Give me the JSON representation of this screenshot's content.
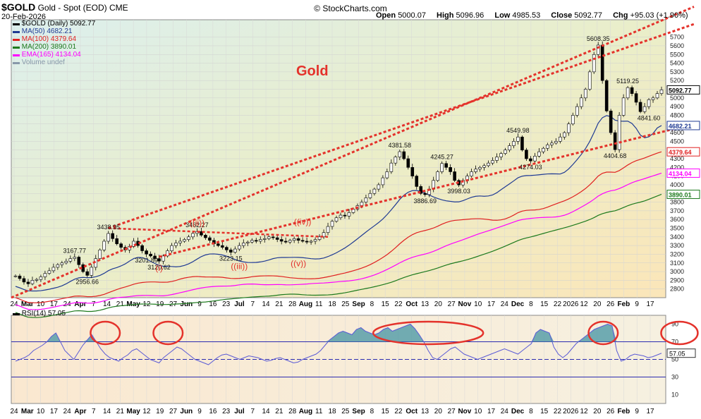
{
  "header": {
    "symbol": "$GOLD",
    "name": "Gold - Spot (EOD)",
    "exchange": "CME",
    "date": "20-Feb-2026",
    "brand": "© StockCharts.com",
    "open_label": "Open",
    "open": "5000.07",
    "high_label": "High",
    "high": "5096.96",
    "low_label": "Low",
    "low": "4985.53",
    "close_label": "Close",
    "close": "5092.77",
    "chg_label": "Chg",
    "chg": "+95.03 (+1.90%)"
  },
  "legend": {
    "price": "$GOLD (Daily) 5092.77",
    "ma50": "MA(50) 4682.21",
    "ma100": "MA(100) 4379.64",
    "ma200": "MA(200) 3890.01",
    "ema165": "EMA(165) 4134.04",
    "volume": "Volume undef",
    "rsi": "RSI(14) 57.05"
  },
  "colors": {
    "price": "#000000",
    "ma50": "#1f3a93",
    "ma100": "#e02020",
    "ma200": "#1d7a1d",
    "ema165": "#ff00ff",
    "annotation": "#e4322b",
    "rsi": "#5b5bd6"
  },
  "chart_data": {
    "type": "candlestick",
    "title": "Gold",
    "ylim": [
      2700,
      5900
    ],
    "yticks": [
      2800,
      2900,
      3000,
      3100,
      3200,
      3300,
      3400,
      3500,
      3600,
      3700,
      3800,
      3900,
      4000,
      4100,
      4200,
      4300,
      4400,
      4500,
      4600,
      4700,
      4800,
      4900,
      5000,
      5100,
      5200,
      5300,
      5400,
      5500,
      5600,
      5700
    ],
    "x_labels": [
      "24",
      "Mar",
      "10",
      "17",
      "24",
      "Apr",
      "7",
      "14",
      "21",
      "May",
      "12",
      "19",
      "27",
      "Jun",
      "9",
      "16",
      "23",
      "Jul",
      "7",
      "14",
      "21",
      "28",
      "Aug",
      "11",
      "18",
      "25",
      "Sep",
      "8",
      "15",
      "22",
      "Oct",
      "13",
      "20",
      "27",
      "Nov",
      "10",
      "17",
      "24",
      "Dec",
      "8",
      "15",
      "22",
      "2026",
      "12",
      "20",
      "26",
      "Feb",
      "9",
      "17"
    ],
    "price_labels": [
      {
        "text": "3167.77",
        "value": 3167.77
      },
      {
        "text": "2956.66",
        "value": 2956.66
      },
      {
        "text": "3438.95",
        "value": 3438.95
      },
      {
        "text": "3201.89",
        "value": 3201.89
      },
      {
        "text": "3120.62",
        "value": 3120.62
      },
      {
        "text": "3462.27",
        "value": 3462.27
      },
      {
        "text": "3223.15",
        "value": 3223.15
      },
      {
        "text": "4381.58",
        "value": 4381.58
      },
      {
        "text": "3886.69",
        "value": 3886.69
      },
      {
        "text": "4245.27",
        "value": 4245.27
      },
      {
        "text": "3998.03",
        "value": 3998.03
      },
      {
        "text": "4549.98",
        "value": 4549.98
      },
      {
        "text": "4274.03",
        "value": 4274.03
      },
      {
        "text": "5608.35",
        "value": 5608.35
      },
      {
        "text": "5119.25",
        "value": 5119.25
      },
      {
        "text": "4841.60",
        "value": 4841.6
      },
      {
        "text": "4404.68",
        "value": 4404.68
      }
    ],
    "wave_labels": [
      "((ii))",
      "((iv))",
      "(i)",
      "((iii))",
      "((v))"
    ],
    "right_tags": [
      {
        "text": "5092.77",
        "value": 5092.77,
        "color": "#000000"
      },
      {
        "text": "4682.21",
        "value": 4682.21,
        "color": "#1f3a93"
      },
      {
        "text": "4379.64",
        "value": 4379.64,
        "color": "#e02020"
      },
      {
        "text": "4134.04",
        "value": 4134.04,
        "color": "#ff00ff"
      },
      {
        "text": "3890.01",
        "value": 3890.01,
        "color": "#1d7a1d"
      }
    ],
    "close_series": [
      2950,
      2920,
      2880,
      2860,
      2900,
      2910,
      2940,
      2980,
      3010,
      3050,
      3080,
      3100,
      3120,
      3150,
      3167,
      3080,
      3000,
      2957,
      3050,
      3150,
      3250,
      3350,
      3439,
      3380,
      3320,
      3280,
      3250,
      3290,
      3350,
      3300,
      3240,
      3202,
      3180,
      3150,
      3121,
      3180,
      3240,
      3300,
      3330,
      3350,
      3370,
      3400,
      3440,
      3462,
      3420,
      3390,
      3360,
      3320,
      3300,
      3280,
      3250,
      3223,
      3260,
      3300,
      3330,
      3340,
      3360,
      3350,
      3370,
      3380,
      3400,
      3390,
      3370,
      3350,
      3340,
      3360,
      3380,
      3360,
      3350,
      3340,
      3350,
      3370,
      3400,
      3450,
      3520,
      3580,
      3620,
      3650,
      3640,
      3680,
      3720,
      3760,
      3800,
      3850,
      3900,
      3950,
      4000,
      4080,
      4150,
      4250,
      4320,
      4381,
      4300,
      4200,
      4100,
      3980,
      3900,
      3887,
      3950,
      4050,
      4150,
      4245,
      4200,
      4150,
      4050,
      3998,
      4050,
      4100,
      4150,
      4180,
      4200,
      4220,
      4250,
      4280,
      4320,
      4360,
      4400,
      4450,
      4500,
      4550,
      4400,
      4300,
      4274,
      4330,
      4380,
      4420,
      4460,
      4480,
      4500,
      4550,
      4600,
      4700,
      4800,
      4900,
      5000,
      5100,
      5300,
      5500,
      5608,
      5200,
      4850,
      4600,
      4405,
      4800,
      5000,
      5119,
      5050,
      4950,
      4842,
      4900,
      4980,
      5000,
      5050,
      5093
    ],
    "rsi": {
      "label": "RSI(14)",
      "value": 57.05,
      "ylim": [
        0,
        100
      ],
      "levels": [
        70,
        50,
        30
      ],
      "yticks": [
        10,
        30,
        50,
        70,
        90
      ],
      "series": [
        48,
        50,
        52,
        55,
        60,
        63,
        66,
        70,
        76,
        80,
        70,
        60,
        55,
        50,
        58,
        66,
        72,
        78,
        70,
        62,
        56,
        52,
        50,
        48,
        52,
        55,
        60,
        62,
        58,
        54,
        50,
        48,
        46,
        52,
        56,
        60,
        64,
        62,
        58,
        54,
        50,
        48,
        46,
        44,
        48,
        52,
        55,
        56,
        54,
        52,
        50,
        52,
        54,
        53,
        52,
        50,
        48,
        49,
        51,
        52,
        50,
        48,
        46,
        47,
        50,
        52,
        54,
        56,
        60,
        66,
        72,
        76,
        80,
        82,
        80,
        78,
        84,
        86,
        82,
        80,
        78,
        80,
        84,
        86,
        82,
        84,
        86,
        88,
        90,
        85,
        78,
        70,
        60,
        52,
        50,
        54,
        58,
        62,
        64,
        60,
        56,
        54,
        52,
        50,
        52,
        54,
        56,
        58,
        60,
        62,
        60,
        58,
        56,
        60,
        64,
        68,
        80,
        84,
        82,
        80,
        64,
        56,
        52,
        56,
        62,
        68,
        72,
        76,
        80,
        84,
        86,
        88,
        90,
        88,
        60,
        48,
        50,
        54,
        56,
        55,
        54,
        52,
        53,
        55,
        57
      ]
    }
  }
}
